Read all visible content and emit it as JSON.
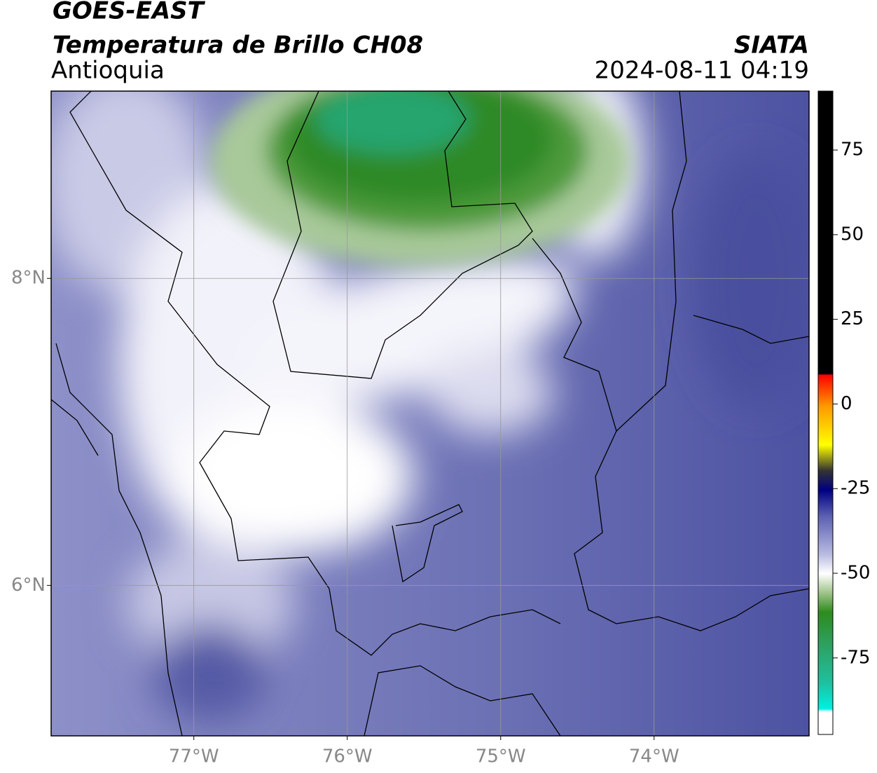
{
  "header": {
    "title": "GOES-EAST",
    "subtitle": "Temperatura de Brillo CH08",
    "region": "Antioquia",
    "source": "SIATA",
    "datetime": "2024-08-11 04:19"
  },
  "map": {
    "lat_lim": [
      5.02,
      9.22
    ],
    "lon_lim": [
      -77.93,
      -72.99
    ],
    "lat_ticks": [
      {
        "value": 8,
        "label": "8°N"
      },
      {
        "value": 6,
        "label": "6°N"
      }
    ],
    "lon_ticks": [
      {
        "value": -77,
        "label": "77°W"
      },
      {
        "value": -76,
        "label": "76°W"
      },
      {
        "value": -75,
        "label": "75°W"
      },
      {
        "value": -74,
        "label": "74°W"
      }
    ]
  },
  "colorbar": {
    "lim": [
      -97.6,
      92.4
    ],
    "ticks": [
      75,
      50,
      25,
      0,
      -25,
      -50,
      -75
    ]
  }
}
